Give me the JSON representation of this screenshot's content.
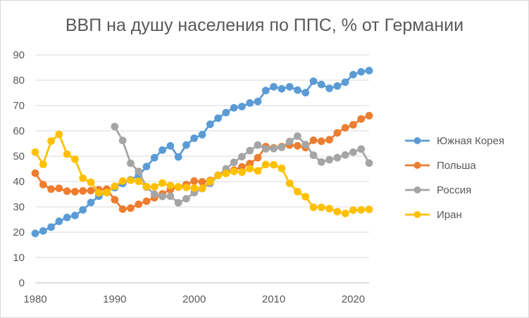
{
  "chart_data": {
    "type": "line",
    "title": "ВВП на душу населения по ППС, % от Германии",
    "xlabel": "",
    "ylabel": "",
    "xlim": [
      1980,
      2022
    ],
    "ylim": [
      0,
      90
    ],
    "x_ticks": [
      1980,
      1990,
      2000,
      2010,
      2020
    ],
    "y_ticks": [
      0,
      10,
      20,
      30,
      40,
      50,
      60,
      70,
      80,
      90
    ],
    "grid": true,
    "legend_position": "right",
    "series": [
      {
        "name": "Южная Корея",
        "color": "#5b9bd5",
        "x": [
          1980,
          1981,
          1982,
          1983,
          1984,
          1985,
          1986,
          1987,
          1988,
          1989,
          1990,
          1991,
          1992,
          1993,
          1994,
          1995,
          1996,
          1997,
          1998,
          1999,
          2000,
          2001,
          2002,
          2003,
          2004,
          2005,
          2006,
          2007,
          2008,
          2009,
          2010,
          2011,
          2012,
          2013,
          2014,
          2015,
          2016,
          2017,
          2018,
          2019,
          2020,
          2021,
          2022
        ],
        "values": [
          19.5,
          20.5,
          22,
          24.3,
          25.8,
          26.6,
          28.8,
          31.7,
          34.2,
          36,
          37.6,
          39.2,
          40.7,
          42.3,
          45.9,
          49.4,
          52.4,
          54.1,
          49.7,
          54.4,
          57.1,
          58.5,
          62.6,
          65,
          67.2,
          69.1,
          69.6,
          71,
          71.6,
          75.9,
          77.4,
          76.6,
          77.4,
          76.1,
          75.1,
          79.6,
          78.3,
          76.8,
          77.7,
          79.2,
          82.2,
          83.3,
          83.8
        ]
      },
      {
        "name": "Польша",
        "color": "#ed7d31",
        "x": [
          1980,
          1981,
          1982,
          1983,
          1984,
          1985,
          1986,
          1987,
          1988,
          1989,
          1990,
          1991,
          1992,
          1993,
          1994,
          1995,
          1996,
          1997,
          1998,
          1999,
          2000,
          2001,
          2002,
          2003,
          2004,
          2005,
          2006,
          2007,
          2008,
          2009,
          2010,
          2011,
          2012,
          2013,
          2014,
          2015,
          2016,
          2017,
          2018,
          2019,
          2020,
          2021,
          2022
        ],
        "values": [
          43.3,
          38.8,
          37,
          37.3,
          36.2,
          36,
          36.3,
          36.4,
          36.8,
          37,
          32.8,
          29.1,
          29.5,
          31,
          32.2,
          33.6,
          35.1,
          36.8,
          37.8,
          38.8,
          40.2,
          39.9,
          40.4,
          42.5,
          43.8,
          44.5,
          45.8,
          47.1,
          49.4,
          53.8,
          53.3,
          53.8,
          54.4,
          54.1,
          53.4,
          56.3,
          55.9,
          56.5,
          59.2,
          61.2,
          62.4,
          64.7,
          66
        ]
      },
      {
        "name": "Россия",
        "color": "#a5a5a5",
        "x": [
          1990,
          1991,
          1992,
          1993,
          1994,
          1995,
          1996,
          1997,
          1998,
          1999,
          2000,
          2001,
          2002,
          2003,
          2004,
          2005,
          2006,
          2007,
          2008,
          2009,
          2010,
          2011,
          2012,
          2013,
          2014,
          2015,
          2016,
          2017,
          2018,
          2019,
          2020,
          2021,
          2022
        ],
        "values": [
          61.7,
          56.2,
          47.2,
          44,
          37.8,
          35,
          34.1,
          34.2,
          31.6,
          33.2,
          35.6,
          37.2,
          39.2,
          42.4,
          45,
          47.6,
          49.8,
          52.2,
          54.4,
          52.9,
          53,
          53.5,
          55.8,
          57.9,
          54.6,
          50.4,
          47.7,
          48.6,
          49.4,
          50.5,
          51.6,
          52.8,
          47.3
        ]
      },
      {
        "name": "Иран",
        "color": "#ffc000",
        "x": [
          1980,
          1981,
          1982,
          1983,
          1984,
          1985,
          1986,
          1987,
          1988,
          1989,
          1990,
          1991,
          1992,
          1993,
          1994,
          1995,
          1996,
          1997,
          1998,
          1999,
          2000,
          2001,
          2002,
          2003,
          2004,
          2005,
          2006,
          2007,
          2008,
          2009,
          2010,
          2011,
          2012,
          2013,
          2014,
          2015,
          2016,
          2017,
          2018,
          2019,
          2020,
          2021,
          2022
        ],
        "values": [
          51.6,
          46.8,
          56,
          58.6,
          50.8,
          48.8,
          41.3,
          39.7,
          35.5,
          35.6,
          38.1,
          40.2,
          40.5,
          40.1,
          38,
          37.9,
          39.4,
          38.4,
          37.9,
          37.7,
          37.4,
          37.3,
          40.1,
          42.4,
          43.2,
          44,
          43.7,
          45.1,
          44.2,
          46.7,
          46.6,
          45.2,
          39.3,
          36,
          34,
          29.8,
          29.8,
          29.3,
          28.1,
          27.4,
          28.7,
          28.8,
          29
        ]
      }
    ]
  }
}
